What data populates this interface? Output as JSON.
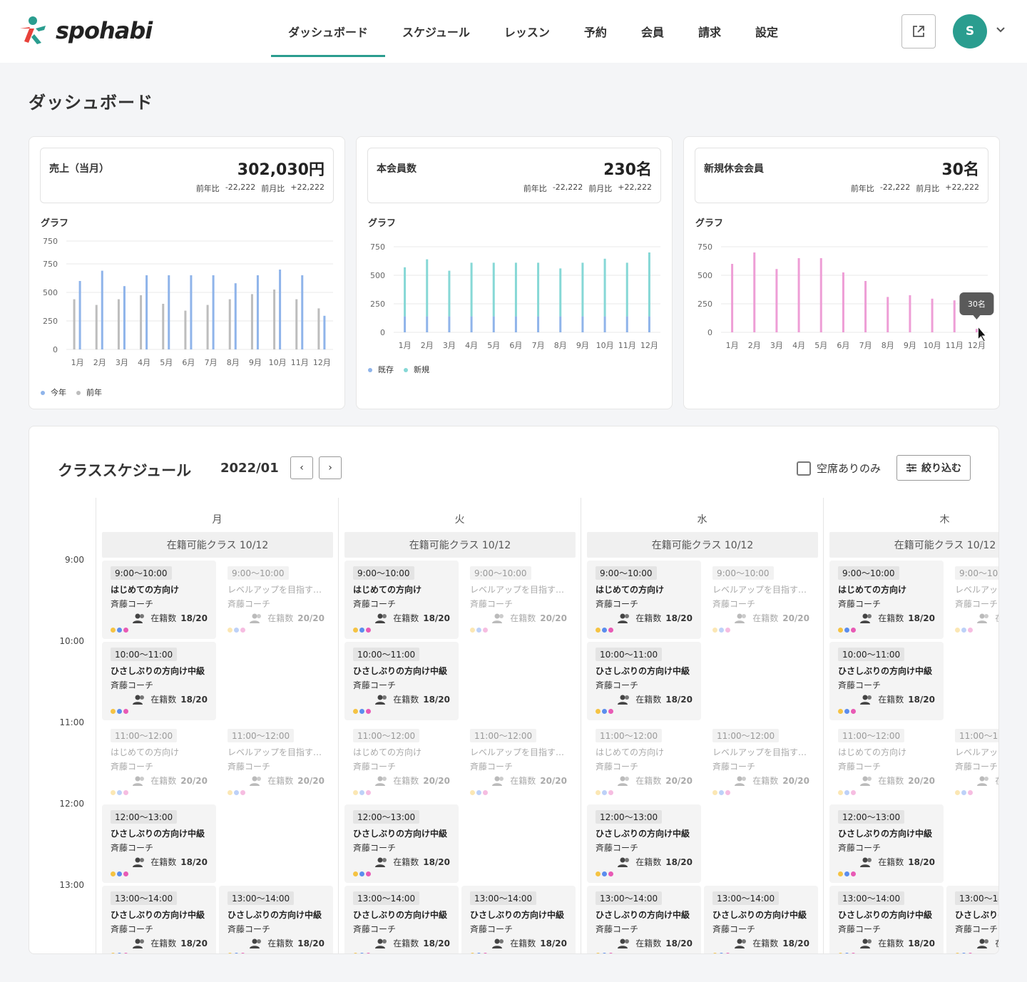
{
  "brand": {
    "name": "spohabi"
  },
  "nav": [
    {
      "label": "ダッシュボード",
      "active": true
    },
    {
      "label": "スケジュール"
    },
    {
      "label": "レッスン"
    },
    {
      "label": "予約"
    },
    {
      "label": "会員"
    },
    {
      "label": "請求"
    },
    {
      "label": "設定"
    }
  ],
  "user": {
    "initial": "S"
  },
  "page": {
    "title": "ダッシュボード"
  },
  "cards": [
    {
      "label": "売上（当月）",
      "value": "302,030円",
      "yoy_label": "前年比",
      "yoy": "-22,222",
      "mom_label": "前月比",
      "mom": "+22,222",
      "graph_label": "グラフ"
    },
    {
      "label": "本会員数",
      "value": "230名",
      "yoy_label": "前年比",
      "yoy": "-22,222",
      "mom_label": "前月比",
      "mom": "+22,222",
      "graph_label": "グラフ"
    },
    {
      "label": "新規休会会員",
      "value": "30名",
      "yoy_label": "前年比",
      "yoy": "-22,222",
      "mom_label": "前月比",
      "mom": "+22,222",
      "graph_label": "グラフ"
    }
  ],
  "chart_data": [
    {
      "type": "bar",
      "categories": [
        "1月",
        "2月",
        "3月",
        "4月",
        "5月",
        "6月",
        "7月",
        "8月",
        "9月",
        "10月",
        "11月",
        "12月"
      ],
      "y_ticks": [
        "750",
        "750",
        "500",
        "250",
        "0"
      ],
      "ylim": [
        0,
        950
      ],
      "series": [
        {
          "name": "今年",
          "color": "#8fb4ea",
          "values": [
            600,
            690,
            555,
            650,
            650,
            650,
            650,
            580,
            650,
            700,
            650,
            295
          ]
        },
        {
          "name": "前年",
          "color": "#bdbdbd",
          "values": [
            440,
            390,
            440,
            475,
            400,
            340,
            390,
            440,
            485,
            525,
            440,
            360
          ]
        }
      ],
      "legend": "bottom-left",
      "grid": true
    },
    {
      "type": "bar",
      "stacked": true,
      "categories": [
        "1月",
        "2月",
        "3月",
        "4月",
        "5月",
        "6月",
        "7月",
        "8月",
        "9月",
        "10月",
        "11月",
        "12月"
      ],
      "y_ticks": [
        "750",
        "500",
        "250",
        "0"
      ],
      "ylim": [
        0,
        750
      ],
      "series": [
        {
          "name": "既存",
          "color": "#8fb4ea",
          "values": [
            140,
            140,
            140,
            140,
            140,
            140,
            140,
            140,
            140,
            140,
            140,
            140
          ]
        },
        {
          "name": "新規",
          "color": "#86d8d6",
          "values": [
            430,
            500,
            400,
            470,
            470,
            470,
            470,
            420,
            470,
            505,
            470,
            560
          ]
        }
      ],
      "legend": "bottom-left",
      "grid": true
    },
    {
      "type": "bar",
      "categories": [
        "1月",
        "2月",
        "3月",
        "4月",
        "5月",
        "6月",
        "7月",
        "8月",
        "9月",
        "10月",
        "11月",
        "12月"
      ],
      "y_ticks": [
        "750",
        "500",
        "250",
        "0"
      ],
      "ylim": [
        0,
        750
      ],
      "series": [
        {
          "color": "#ee9ed6",
          "values": [
            600,
            700,
            555,
            650,
            650,
            525,
            450,
            310,
            325,
            295,
            280,
            30
          ]
        }
      ],
      "tooltip": {
        "text": "30名",
        "category": "12月"
      },
      "grid": true
    }
  ],
  "schedule": {
    "title": "クラススケジュール",
    "month": "2022/01",
    "prev_icon": "‹",
    "next_icon": "›",
    "available_only_label": "空席ありのみ",
    "filter_label": "絞り込む",
    "times": [
      "9:00",
      "10:00",
      "11:00",
      "12:00",
      "13:00"
    ],
    "days": [
      {
        "name": "月",
        "capacity": "在籍可能クラス 10/12"
      },
      {
        "name": "火",
        "capacity": "在籍可能クラス 10/12"
      },
      {
        "name": "水",
        "capacity": "在籍可能クラス 10/12"
      },
      {
        "name": "木",
        "capacity": "在籍可能クラス 10/12"
      }
    ],
    "enrolled_label": "在籍数",
    "classes_left": [
      {
        "time": "9:00〜10:00",
        "name": "はじめての方向け",
        "coach": "斉藤コーチ",
        "count": "18/20",
        "full": false
      },
      {
        "time": "10:00〜11:00",
        "name": "ひさしぶりの方向け中級",
        "coach": "斉藤コーチ",
        "count": "18/20",
        "full": false
      },
      {
        "time": "11:00〜12:00",
        "name": "はじめての方向け",
        "coach": "斉藤コーチ",
        "count": "20/20",
        "full": true
      },
      {
        "time": "12:00〜13:00",
        "name": "ひさしぶりの方向け中級",
        "coach": "斉藤コーチ",
        "count": "18/20",
        "full": false
      },
      {
        "time": "13:00〜14:00",
        "name": "ひさしぶりの方向け中級",
        "coach": "斉藤コーチ",
        "count": "18/20",
        "full": false
      }
    ],
    "classes_right": [
      {
        "time": "9:00〜10:00",
        "name": "レベルアップを目指す…",
        "coach": "斉藤コーチ",
        "count": "20/20",
        "full": true
      },
      null,
      {
        "time": "11:00〜12:00",
        "name": "レベルアップを目指す…",
        "coach": "斉藤コーチ",
        "count": "20/20",
        "full": true
      },
      null,
      {
        "time": "13:00〜14:00",
        "name": "ひさしぶりの方向け中級",
        "coach": "斉藤コーチ",
        "count": "18/20",
        "full": false
      }
    ],
    "dot_colors": [
      "#f5c343",
      "#5b8dee",
      "#e85ab5"
    ]
  }
}
